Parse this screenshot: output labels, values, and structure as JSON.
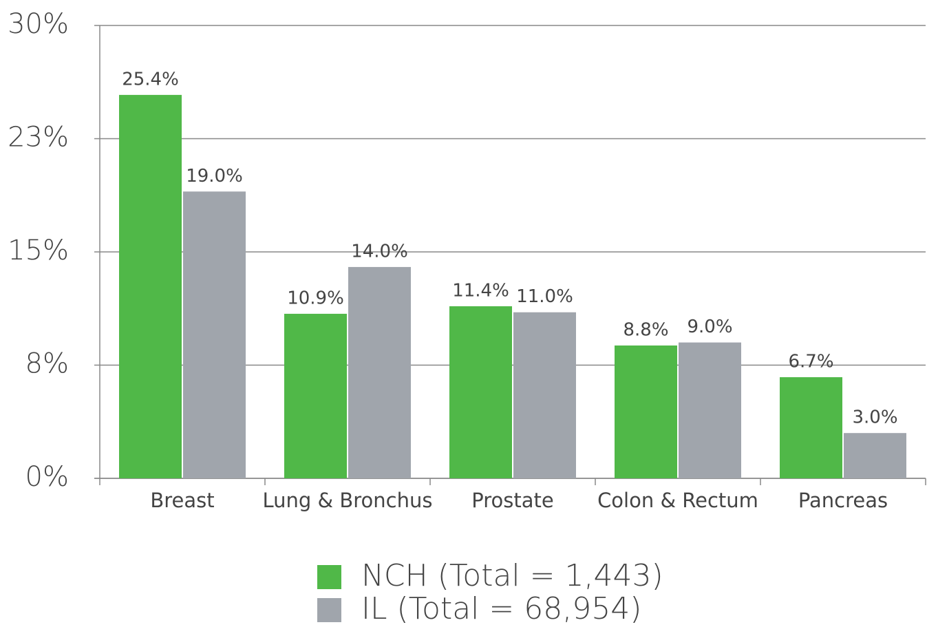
{
  "chart_data": {
    "type": "bar",
    "categories": [
      "Breast",
      "Lung & Bronchus",
      "Prostate",
      "Colon & Rectum",
      "Pancreas"
    ],
    "series": [
      {
        "name": "NCH (Total = 1,443)",
        "color": "#50b848",
        "values": [
          25.4,
          10.9,
          11.4,
          8.8,
          6.7
        ],
        "value_labels": [
          "25.4%",
          "10.9%",
          "11.4%",
          "8.8%",
          "6.7%"
        ]
      },
      {
        "name": "IL (Total = 68,954)",
        "color": "#a0a5ac",
        "values": [
          19.0,
          14.0,
          11.0,
          9.0,
          3.0
        ],
        "value_labels": [
          "19.0%",
          "14.0%",
          "11.0%",
          "9.0%",
          "3.0%"
        ]
      }
    ],
    "ylim": [
      0,
      30
    ],
    "yticks": [
      {
        "value": 0,
        "label": "0%"
      },
      {
        "value": 7.5,
        "label": "8%"
      },
      {
        "value": 15,
        "label": "15%"
      },
      {
        "value": 22.5,
        "label": "23%"
      },
      {
        "value": 30,
        "label": "30%"
      }
    ],
    "grid": true,
    "legend": "bottom"
  }
}
